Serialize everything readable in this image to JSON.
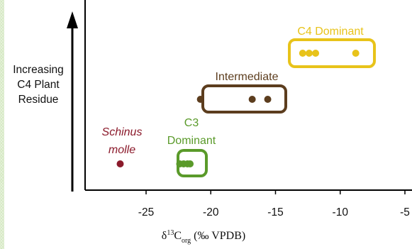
{
  "chart_data": {
    "type": "scatter",
    "xlabel": "δ13Corg (‰ VPDB)",
    "xlabel_parts": {
      "delta": "δ",
      "sup": "13",
      "base": "C",
      "sub": "org",
      "rest": " (‰ VPDB)"
    },
    "ylabel_lines": [
      "Increasing",
      "C4 Plant",
      "Residue"
    ],
    "xlim": [
      -29.5,
      -4.5
    ],
    "xticks": [
      -25,
      -20,
      -15,
      -10,
      -5
    ],
    "xtick_labels": [
      "-25",
      "-20",
      "-15",
      "-10",
      "-5"
    ],
    "grid": false,
    "series": [
      {
        "name": "Schinus molle",
        "name_lines": [
          "Schinus",
          "molle"
        ],
        "color": "#8b1a2b",
        "x": [
          -27.0
        ],
        "boxed": false
      },
      {
        "name": "C3 Dominant",
        "name_lines": [
          "C3",
          "Dominant"
        ],
        "color": "#5a9a2a",
        "x": [
          -22.4,
          -22.1,
          -21.8,
          -21.6
        ],
        "boxed": true
      },
      {
        "name": "Intermediate",
        "name_lines": [
          "Intermediate"
        ],
        "color": "#5c3d1e",
        "x": [
          -20.8,
          -16.8,
          -15.6
        ],
        "boxed": true
      },
      {
        "name": "C4 Dominant",
        "name_lines": [
          "C4 Dominant"
        ],
        "color": "#e8c31a",
        "x": [
          -12.9,
          -12.4,
          -11.9,
          -8.8
        ],
        "boxed": true
      }
    ]
  }
}
